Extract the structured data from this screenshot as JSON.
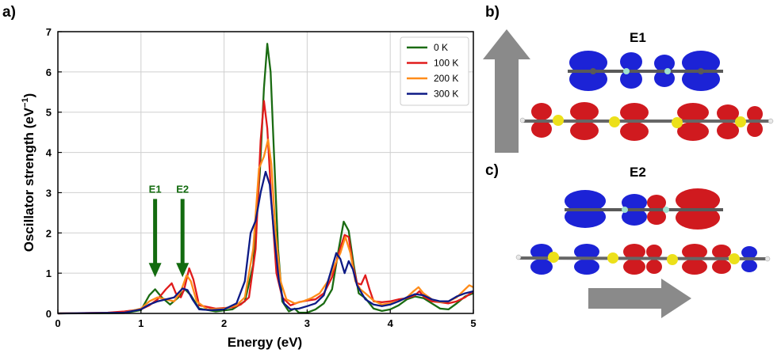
{
  "panels": {
    "a": "a)",
    "b": "b)",
    "c": "c)",
    "b_title": "E1",
    "c_title": "E2"
  },
  "chart_data": {
    "type": "line",
    "title": "",
    "xlabel": "Energy (eV)",
    "ylabel": "Oscillator strength (eV",
    "ylabel_sup": "−1",
    "ylabel_close": ")",
    "xlim": [
      0,
      5
    ],
    "ylim": [
      0,
      7
    ],
    "xticks": [
      0,
      1,
      2,
      3,
      4,
      5
    ],
    "yticks": [
      0,
      1,
      2,
      3,
      4,
      5,
      6,
      7
    ],
    "grid": true,
    "legend_position": "top-right",
    "series": [
      {
        "name": "0 K",
        "color": "#1a6b12",
        "points": [
          [
            0,
            0
          ],
          [
            0.8,
            0.01
          ],
          [
            1.0,
            0.08
          ],
          [
            1.1,
            0.45
          ],
          [
            1.17,
            0.6
          ],
          [
            1.25,
            0.4
          ],
          [
            1.35,
            0.22
          ],
          [
            1.45,
            0.4
          ],
          [
            1.53,
            0.6
          ],
          [
            1.6,
            0.45
          ],
          [
            1.7,
            0.12
          ],
          [
            1.9,
            0.05
          ],
          [
            2.1,
            0.1
          ],
          [
            2.25,
            0.3
          ],
          [
            2.35,
            1.2
          ],
          [
            2.43,
            3.5
          ],
          [
            2.48,
            5.6
          ],
          [
            2.52,
            6.7
          ],
          [
            2.56,
            6.0
          ],
          [
            2.6,
            4.0
          ],
          [
            2.65,
            1.6
          ],
          [
            2.7,
            0.3
          ],
          [
            2.78,
            0.05
          ],
          [
            2.85,
            0.12
          ],
          [
            2.9,
            0.02
          ],
          [
            3.0,
            0.02
          ],
          [
            3.1,
            0.1
          ],
          [
            3.2,
            0.25
          ],
          [
            3.3,
            0.6
          ],
          [
            3.38,
            1.6
          ],
          [
            3.44,
            2.28
          ],
          [
            3.5,
            2.05
          ],
          [
            3.56,
            1.2
          ],
          [
            3.62,
            0.5
          ],
          [
            3.7,
            0.38
          ],
          [
            3.8,
            0.12
          ],
          [
            3.9,
            0.06
          ],
          [
            4.0,
            0.1
          ],
          [
            4.1,
            0.2
          ],
          [
            4.2,
            0.35
          ],
          [
            4.3,
            0.42
          ],
          [
            4.4,
            0.38
          ],
          [
            4.5,
            0.25
          ],
          [
            4.6,
            0.12
          ],
          [
            4.7,
            0.1
          ],
          [
            4.8,
            0.25
          ],
          [
            4.9,
            0.42
          ],
          [
            5.0,
            0.5
          ]
        ]
      },
      {
        "name": "100 K",
        "color": "#e01b1b",
        "points": [
          [
            0,
            0
          ],
          [
            0.6,
            0.02
          ],
          [
            0.8,
            0.05
          ],
          [
            1.0,
            0.1
          ],
          [
            1.1,
            0.2
          ],
          [
            1.2,
            0.35
          ],
          [
            1.3,
            0.6
          ],
          [
            1.37,
            0.75
          ],
          [
            1.42,
            0.5
          ],
          [
            1.48,
            0.4
          ],
          [
            1.52,
            0.6
          ],
          [
            1.58,
            1.12
          ],
          [
            1.63,
            0.85
          ],
          [
            1.7,
            0.2
          ],
          [
            1.9,
            0.12
          ],
          [
            2.1,
            0.15
          ],
          [
            2.2,
            0.22
          ],
          [
            2.3,
            0.4
          ],
          [
            2.38,
            1.6
          ],
          [
            2.44,
            4.3
          ],
          [
            2.48,
            5.28
          ],
          [
            2.52,
            4.6
          ],
          [
            2.57,
            2.8
          ],
          [
            2.63,
            1.0
          ],
          [
            2.7,
            0.4
          ],
          [
            2.8,
            0.2
          ],
          [
            2.9,
            0.28
          ],
          [
            3.0,
            0.32
          ],
          [
            3.1,
            0.35
          ],
          [
            3.2,
            0.5
          ],
          [
            3.3,
            0.9
          ],
          [
            3.38,
            1.5
          ],
          [
            3.45,
            1.95
          ],
          [
            3.5,
            1.9
          ],
          [
            3.55,
            1.2
          ],
          [
            3.6,
            0.75
          ],
          [
            3.65,
            0.72
          ],
          [
            3.7,
            0.95
          ],
          [
            3.75,
            0.6
          ],
          [
            3.8,
            0.3
          ],
          [
            3.9,
            0.28
          ],
          [
            4.0,
            0.3
          ],
          [
            4.1,
            0.35
          ],
          [
            4.2,
            0.38
          ],
          [
            4.3,
            0.45
          ],
          [
            4.35,
            0.55
          ],
          [
            4.4,
            0.42
          ],
          [
            4.5,
            0.3
          ],
          [
            4.6,
            0.28
          ],
          [
            4.7,
            0.25
          ],
          [
            4.8,
            0.3
          ],
          [
            4.9,
            0.4
          ],
          [
            5.0,
            0.55
          ]
        ]
      },
      {
        "name": "200 K",
        "color": "#ff8c1a",
        "points": [
          [
            0,
            0
          ],
          [
            0.8,
            0.02
          ],
          [
            1.0,
            0.12
          ],
          [
            1.1,
            0.3
          ],
          [
            1.2,
            0.4
          ],
          [
            1.3,
            0.35
          ],
          [
            1.4,
            0.3
          ],
          [
            1.48,
            0.55
          ],
          [
            1.55,
            0.95
          ],
          [
            1.6,
            0.8
          ],
          [
            1.67,
            0.3
          ],
          [
            1.8,
            0.1
          ],
          [
            2.0,
            0.12
          ],
          [
            2.15,
            0.2
          ],
          [
            2.25,
            0.4
          ],
          [
            2.35,
            1.6
          ],
          [
            2.42,
            3.6
          ],
          [
            2.48,
            3.9
          ],
          [
            2.53,
            4.32
          ],
          [
            2.57,
            3.7
          ],
          [
            2.62,
            2.0
          ],
          [
            2.68,
            0.8
          ],
          [
            2.75,
            0.35
          ],
          [
            2.85,
            0.25
          ],
          [
            2.95,
            0.3
          ],
          [
            3.05,
            0.38
          ],
          [
            3.15,
            0.5
          ],
          [
            3.25,
            0.8
          ],
          [
            3.33,
            1.2
          ],
          [
            3.4,
            1.5
          ],
          [
            3.46,
            1.9
          ],
          [
            3.52,
            1.5
          ],
          [
            3.58,
            0.8
          ],
          [
            3.64,
            0.6
          ],
          [
            3.7,
            0.5
          ],
          [
            3.8,
            0.32
          ],
          [
            3.9,
            0.22
          ],
          [
            4.0,
            0.25
          ],
          [
            4.1,
            0.3
          ],
          [
            4.2,
            0.4
          ],
          [
            4.28,
            0.55
          ],
          [
            4.34,
            0.65
          ],
          [
            4.4,
            0.5
          ],
          [
            4.5,
            0.35
          ],
          [
            4.6,
            0.28
          ],
          [
            4.7,
            0.3
          ],
          [
            4.8,
            0.4
          ],
          [
            4.9,
            0.6
          ],
          [
            4.95,
            0.7
          ],
          [
            5.0,
            0.65
          ]
        ]
      },
      {
        "name": "300 K",
        "color": "#0d1a85",
        "points": [
          [
            0,
            0
          ],
          [
            0.8,
            0.02
          ],
          [
            1.0,
            0.1
          ],
          [
            1.1,
            0.22
          ],
          [
            1.2,
            0.3
          ],
          [
            1.3,
            0.35
          ],
          [
            1.4,
            0.4
          ],
          [
            1.5,
            0.62
          ],
          [
            1.56,
            0.58
          ],
          [
            1.62,
            0.35
          ],
          [
            1.7,
            0.1
          ],
          [
            1.85,
            0.08
          ],
          [
            2.0,
            0.1
          ],
          [
            2.15,
            0.25
          ],
          [
            2.25,
            0.8
          ],
          [
            2.32,
            2.0
          ],
          [
            2.38,
            2.3
          ],
          [
            2.44,
            3.0
          ],
          [
            2.5,
            3.52
          ],
          [
            2.55,
            3.2
          ],
          [
            2.6,
            2.0
          ],
          [
            2.66,
            0.8
          ],
          [
            2.72,
            0.25
          ],
          [
            2.8,
            0.1
          ],
          [
            2.9,
            0.12
          ],
          [
            3.0,
            0.18
          ],
          [
            3.1,
            0.25
          ],
          [
            3.2,
            0.45
          ],
          [
            3.28,
            1.0
          ],
          [
            3.35,
            1.5
          ],
          [
            3.4,
            1.35
          ],
          [
            3.45,
            1.0
          ],
          [
            3.5,
            1.3
          ],
          [
            3.55,
            1.1
          ],
          [
            3.6,
            0.7
          ],
          [
            3.7,
            0.35
          ],
          [
            3.8,
            0.22
          ],
          [
            3.9,
            0.18
          ],
          [
            4.0,
            0.22
          ],
          [
            4.1,
            0.3
          ],
          [
            4.2,
            0.4
          ],
          [
            4.3,
            0.48
          ],
          [
            4.4,
            0.45
          ],
          [
            4.5,
            0.35
          ],
          [
            4.6,
            0.3
          ],
          [
            4.7,
            0.3
          ],
          [
            4.8,
            0.42
          ],
          [
            4.9,
            0.5
          ],
          [
            5.0,
            0.55
          ]
        ]
      }
    ],
    "annotations": [
      {
        "label": "E1",
        "x": 1.17,
        "y_top": 3.0,
        "y_tip": 0.9,
        "color": "#136b0f"
      },
      {
        "label": "E2",
        "x": 1.5,
        "y_top": 3.0,
        "y_tip": 0.9,
        "color": "#136b0f"
      }
    ]
  },
  "colors": {
    "occupied_orbital": "#1c23d6",
    "unoccupied_orbital": "#d01a1f",
    "arrow_gray": "#8a8a8a",
    "sulfur": "#ece01a",
    "nitrogen": "#9fe0cf",
    "carbon": "#595959",
    "hydrogen": "#e8e8e8",
    "annotation_green": "#136b0f"
  }
}
